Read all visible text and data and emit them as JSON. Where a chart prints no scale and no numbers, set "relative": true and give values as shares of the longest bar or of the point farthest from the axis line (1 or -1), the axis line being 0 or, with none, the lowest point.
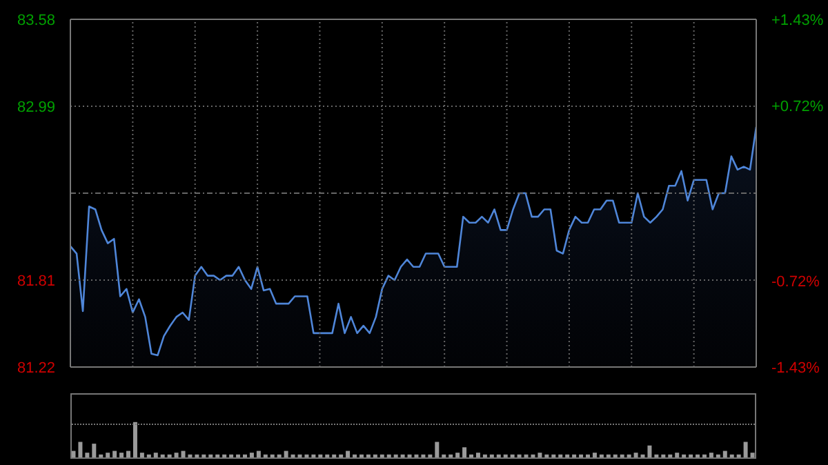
{
  "chart_data": [
    {
      "type": "area",
      "ylim": [
        81.22,
        83.58
      ],
      "yticks": [
        81.22,
        81.81,
        {
          "value": 82.4,
          "label": null
        },
        82.99,
        83.58
      ],
      "y2lim": [
        -1.43,
        1.43
      ],
      "y2ticks": [
        {
          "value": -1.43,
          "label": "-1.43%"
        },
        {
          "value": -0.72,
          "label": "-0.72%"
        },
        {
          "value": 0.72,
          "label": "+0.72%"
        },
        {
          "value": 1.43,
          "label": "+1.43%"
        }
      ],
      "tick_labels": "y",
      "grid": true,
      "categories": [
        null,
        null,
        null,
        null,
        null,
        null,
        null,
        null,
        null,
        null,
        null,
        null,
        null,
        null,
        null,
        null,
        null,
        null,
        null,
        null,
        null,
        null,
        null,
        null,
        null,
        null,
        null,
        null,
        null,
        null,
        null,
        null,
        null,
        null,
        null,
        null,
        null,
        null,
        null,
        null,
        null,
        null,
        null,
        null,
        null,
        null,
        null,
        null,
        null,
        null,
        null,
        null,
        null,
        null,
        null,
        null,
        null,
        null,
        null,
        null,
        null,
        null,
        null,
        null,
        null,
        null,
        null,
        null,
        null,
        null,
        null,
        null,
        null,
        null,
        null,
        null,
        null,
        null,
        null,
        null,
        null,
        null,
        null,
        null,
        null,
        null,
        null,
        null,
        null,
        null,
        null,
        null,
        null,
        null,
        null,
        null,
        null,
        null,
        null,
        null,
        null,
        null,
        null,
        null,
        null,
        null,
        null,
        null,
        null,
        null,
        null
      ],
      "series": [
        {
          "color": "#4f86d9",
          "values": [
            82.04,
            81.99,
            81.6,
            82.31,
            82.29,
            82.15,
            82.06,
            82.09,
            81.7,
            81.75,
            81.59,
            81.68,
            81.56,
            81.31,
            81.3,
            81.43,
            81.5,
            81.56,
            81.59,
            81.54,
            81.84,
            81.9,
            81.84,
            81.84,
            81.81,
            81.84,
            81.84,
            81.9,
            81.81,
            81.75,
            81.9,
            81.74,
            81.75,
            81.65,
            81.65,
            81.65,
            81.7,
            81.7,
            81.7,
            81.45,
            81.45,
            81.45,
            81.45,
            81.65,
            81.45,
            81.56,
            81.45,
            81.5,
            81.45,
            81.56,
            81.75,
            81.84,
            81.81,
            81.9,
            81.95,
            81.9,
            81.9,
            81.99,
            81.99,
            81.99,
            81.9,
            81.9,
            81.9,
            82.24,
            82.2,
            82.2,
            82.24,
            82.2,
            82.29,
            82.15,
            82.15,
            82.29,
            82.4,
            82.4,
            82.24,
            82.24,
            82.29,
            82.29,
            82.01,
            81.99,
            82.15,
            82.24,
            82.2,
            82.2,
            82.29,
            82.29,
            82.35,
            82.35,
            82.2,
            82.2,
            82.2,
            82.4,
            82.24,
            82.2,
            82.24,
            82.29,
            82.45,
            82.45,
            82.55,
            82.35,
            82.49,
            82.49,
            82.49,
            82.29,
            82.4,
            82.4,
            82.65,
            82.56,
            82.58,
            82.56,
            82.85
          ]
        }
      ]
    },
    {
      "type": "bar",
      "relative": true,
      "grid": "y",
      "tick_labels": false,
      "categories": [
        null,
        null,
        null,
        null,
        null,
        null,
        null,
        null,
        null,
        null,
        null,
        null,
        null,
        null,
        null,
        null,
        null,
        null,
        null,
        null,
        null,
        null,
        null,
        null,
        null,
        null,
        null,
        null,
        null,
        null,
        null,
        null,
        null,
        null,
        null,
        null,
        null,
        null,
        null,
        null,
        null,
        null,
        null,
        null,
        null,
        null,
        null,
        null,
        null,
        null,
        null,
        null,
        null,
        null,
        null,
        null,
        null,
        null,
        null,
        null,
        null,
        null,
        null,
        null,
        null,
        null,
        null,
        null,
        null,
        null,
        null,
        null,
        null,
        null,
        null,
        null,
        null,
        null,
        null,
        null,
        null,
        null,
        null,
        null,
        null,
        null,
        null,
        null,
        null,
        null,
        null,
        null,
        null,
        null,
        null,
        null,
        null,
        null,
        null,
        null
      ],
      "series": [
        {
          "color": "#9a9a9a",
          "values": [
            0.2,
            0.45,
            0.15,
            0.4,
            0.1,
            0.15,
            0.2,
            0.15,
            0.2,
            1,
            0.15,
            0.1,
            0.15,
            0.1,
            0.1,
            0.15,
            0.2,
            0.1,
            0.1,
            0.1,
            0.1,
            0.1,
            0.1,
            0.1,
            0.1,
            0.1,
            0.15,
            0.2,
            0.1,
            0.1,
            0.1,
            0.2,
            0.1,
            0.1,
            0.1,
            0.1,
            0.1,
            0.1,
            0.1,
            0.1,
            0.2,
            0.1,
            0.1,
            0.1,
            0.1,
            0.1,
            0.1,
            0.1,
            0.1,
            0.1,
            0.1,
            0.1,
            0.1,
            0.45,
            0.1,
            0.1,
            0.15,
            0.3,
            0.1,
            0.15,
            0.1,
            0.1,
            0.1,
            0.1,
            0.1,
            0.1,
            0.1,
            0.1,
            0.15,
            0.1,
            0.1,
            0.1,
            0.1,
            0.1,
            0.1,
            0.1,
            0.15,
            0.1,
            0.1,
            0.1,
            0.1,
            0.1,
            0.15,
            0.1,
            0.35,
            0.1,
            0.1,
            0.1,
            0.15,
            0.1,
            0.1,
            0.1,
            0.1,
            0.15,
            0.1,
            0.2,
            0.1,
            0.1,
            0.45,
            0.15
          ]
        }
      ]
    }
  ]
}
